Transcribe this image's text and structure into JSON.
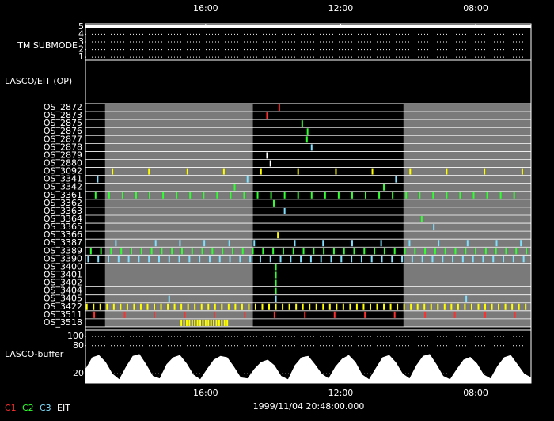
{
  "chart_data": {
    "type": "timeline",
    "xlim": [
      0,
      66
    ],
    "xticks": [
      {
        "value": 17.8,
        "label": "16:00"
      },
      {
        "value": 37.8,
        "label": "12:00"
      },
      {
        "value": 57.8,
        "label": "08:00"
      }
    ],
    "timestamp": "1999/11/04 20:48:00.000",
    "shaded": [
      [
        2.9,
        24.8
      ],
      [
        47.1,
        66
      ]
    ],
    "submode": {
      "label": "TM SUBMODE",
      "ylim": [
        0.6,
        5.4
      ],
      "yticks": [
        1,
        2,
        3,
        4,
        5
      ],
      "x": [
        0,
        66
      ],
      "values": [
        5,
        5
      ]
    },
    "op_label": "LASCO/EIT (OP)",
    "rows": [
      {
        "name": "OS_2872",
        "color": "#ff3030",
        "events": [
          28.7
        ]
      },
      {
        "name": "OS_2873",
        "color": "#ff3030",
        "events": [
          26.9
        ]
      },
      {
        "name": "OS_2875",
        "color": "#30ff30",
        "events": [
          32.1
        ]
      },
      {
        "name": "OS_2876",
        "color": "#30ff30",
        "events": [
          32.9
        ]
      },
      {
        "name": "OS_2877",
        "color": "#30ff30",
        "events": [
          32.8
        ]
      },
      {
        "name": "OS_2878",
        "color": "#80e0ff",
        "events": [
          33.5
        ]
      },
      {
        "name": "OS_2879",
        "color": "#ffffff",
        "events": [
          26.9
        ]
      },
      {
        "name": "OS_2880",
        "color": "#ffffff",
        "events": [
          27.4
        ]
      },
      {
        "name": "OS_3092",
        "color": "#ffff00",
        "events": [
          4.0,
          9.4,
          15.1,
          20.5,
          26.0,
          31.5,
          37.1,
          42.5,
          48.1,
          53.5,
          59.1,
          64.7
        ]
      },
      {
        "name": "OS_3341",
        "color": "#80e0ff",
        "events": [
          1.8,
          24.0,
          46.0
        ]
      },
      {
        "name": "OS_3342",
        "color": "#30ff30",
        "events": [
          22.1,
          44.2
        ]
      },
      {
        "name": "OS_3361",
        "color": "#30ff30",
        "events": [
          1.5,
          3.5,
          5.5,
          7.5,
          9.5,
          11.5,
          13.5,
          15.5,
          17.5,
          19.5,
          21.5,
          23.5,
          25.5,
          27.5,
          29.5,
          31.5,
          33.5,
          35.5,
          37.5,
          39.5,
          41.5,
          43.5,
          45.5,
          47.5,
          49.5,
          51.5,
          53.5,
          55.5,
          57.5,
          59.5,
          61.5,
          63.5
        ]
      },
      {
        "name": "OS_3362",
        "color": "#30ff30",
        "events": [
          27.9
        ]
      },
      {
        "name": "OS_3363",
        "color": "#80e0ff",
        "events": [
          29.5
        ]
      },
      {
        "name": "OS_3364",
        "color": "#30ff30",
        "events": [
          49.8
        ]
      },
      {
        "name": "OS_3365",
        "color": "#80e0ff",
        "events": [
          51.6
        ]
      },
      {
        "name": "OS_3366",
        "color": "#ffff00",
        "events": [
          28.5
        ]
      },
      {
        "name": "OS_3387",
        "color": "#80e0ff",
        "events": [
          4.5,
          10.4,
          14.0,
          17.6,
          21.3,
          25.0,
          31.0,
          35.2,
          39.5,
          43.8,
          48.0,
          52.3,
          56.6,
          60.9,
          64.5
        ]
      },
      {
        "name": "OS_3389",
        "color": "#30ff30",
        "events": [
          0.8,
          2.3,
          3.8,
          5.3,
          6.8,
          8.3,
          9.8,
          11.3,
          12.8,
          14.3,
          15.8,
          17.3,
          18.8,
          20.3,
          21.8,
          23.3,
          24.8,
          26.3,
          27.8,
          29.3,
          30.8,
          32.3,
          33.8,
          35.3,
          36.8,
          38.3,
          39.8,
          41.3,
          42.8,
          44.3,
          45.8,
          47.3,
          48.8,
          50.3,
          51.8,
          53.3,
          54.8,
          56.3,
          57.8,
          59.3,
          60.8,
          62.3,
          63.8,
          65.3
        ]
      },
      {
        "name": "OS_3390",
        "color": "#80e0ff",
        "events": [
          0.4,
          1.9,
          3.4,
          4.9,
          6.4,
          7.9,
          9.4,
          10.9,
          12.4,
          13.9,
          15.4,
          16.9,
          18.4,
          19.9,
          21.4,
          22.9,
          24.4,
          25.9,
          27.4,
          28.9,
          30.4,
          31.9,
          33.4,
          34.9,
          36.4,
          37.9,
          39.4,
          40.9,
          42.4,
          43.9,
          45.4,
          46.9,
          48.4,
          49.9,
          51.4,
          52.9,
          54.4,
          55.9,
          57.4,
          58.9,
          60.4,
          61.9,
          63.4,
          64.9
        ]
      },
      {
        "name": "OS_3400",
        "color": "#30ff30",
        "events": [
          28.2
        ]
      },
      {
        "name": "OS_3401",
        "color": "#30ff30",
        "events": [
          28.2
        ]
      },
      {
        "name": "OS_3402",
        "color": "#30ff30",
        "events": [
          28.2
        ]
      },
      {
        "name": "OS_3404",
        "color": "#30ff30",
        "events": [
          28.2
        ]
      },
      {
        "name": "OS_3405",
        "color": "#80e0ff",
        "events": [
          12.4,
          28.2,
          56.4
        ]
      },
      {
        "name": "OS_3422",
        "color": "#ffff00",
        "events": [
          0.2,
          1.2,
          2.2,
          3.2,
          4.2,
          5.2,
          6.2,
          7.2,
          8.2,
          9.2,
          10.2,
          11.2,
          12.2,
          13.2,
          14.2,
          15.2,
          16.2,
          17.2,
          18.2,
          19.2,
          20.2,
          21.2,
          22.2,
          23.2,
          24.2,
          25.2,
          26.2,
          27.2,
          28.2,
          29.2,
          30.2,
          31.2,
          32.2,
          33.2,
          34.2,
          35.2,
          36.2,
          37.2,
          38.2,
          39.2,
          40.2,
          41.2,
          42.2,
          43.2,
          44.2,
          45.2,
          46.2,
          47.2,
          48.2,
          49.2,
          50.2,
          51.2,
          52.2,
          53.2,
          54.2,
          55.2,
          56.2,
          57.2,
          58.2,
          59.2,
          60.2,
          61.2,
          62.2,
          63.2,
          64.2,
          65.2
        ]
      },
      {
        "name": "OS_3511",
        "color": "#ff3030",
        "events": [
          1.3,
          5.8,
          10.2,
          14.7,
          19.1,
          23.6,
          28.0,
          32.5,
          36.9,
          41.4,
          45.8,
          50.3,
          54.7,
          59.2,
          63.6
        ]
      },
      {
        "name": "OS_3518",
        "color": "#ffff00",
        "events": [
          14.2,
          14.6,
          15.0,
          15.4,
          15.8,
          16.2,
          16.6,
          17.0,
          17.4,
          17.8,
          18.2,
          18.6,
          19.0,
          19.4,
          19.8,
          20.2,
          20.6,
          21.0
        ]
      }
    ],
    "buffer": {
      "label": "LASCO-buffer",
      "color": "#ffffff",
      "ylim": [
        0,
        100
      ],
      "yticks": [
        20,
        80,
        100
      ],
      "x": [
        0,
        1,
        2,
        3,
        4,
        5,
        6,
        7,
        8,
        9,
        10,
        11,
        12,
        13,
        14,
        15,
        16,
        17,
        18,
        19,
        20,
        21,
        22,
        23,
        24,
        25,
        26,
        27,
        28,
        29,
        30,
        31,
        32,
        33,
        34,
        35,
        36,
        37,
        38,
        39,
        40,
        41,
        42,
        43,
        44,
        45,
        46,
        47,
        48,
        49,
        50,
        51,
        52,
        53,
        54,
        55,
        56,
        57,
        58,
        59,
        60,
        61,
        62,
        63,
        64,
        65,
        66
      ],
      "values": [
        30,
        55,
        60,
        45,
        20,
        8,
        35,
        58,
        62,
        40,
        15,
        10,
        40,
        55,
        60,
        42,
        18,
        8,
        30,
        50,
        58,
        55,
        35,
        12,
        10,
        30,
        45,
        50,
        38,
        15,
        8,
        38,
        55,
        58,
        40,
        20,
        10,
        35,
        52,
        60,
        45,
        18,
        8,
        32,
        55,
        60,
        44,
        20,
        10,
        38,
        58,
        62,
        40,
        15,
        8,
        30,
        50,
        56,
        42,
        18,
        10,
        36,
        55,
        60,
        40,
        20,
        12
      ]
    },
    "legend": [
      {
        "name": "C1",
        "color": "#ff3030"
      },
      {
        "name": "C2",
        "color": "#30ff30"
      },
      {
        "name": "C3",
        "color": "#80e0ff"
      },
      {
        "name": "EIT",
        "color": "#ffffff"
      }
    ]
  }
}
